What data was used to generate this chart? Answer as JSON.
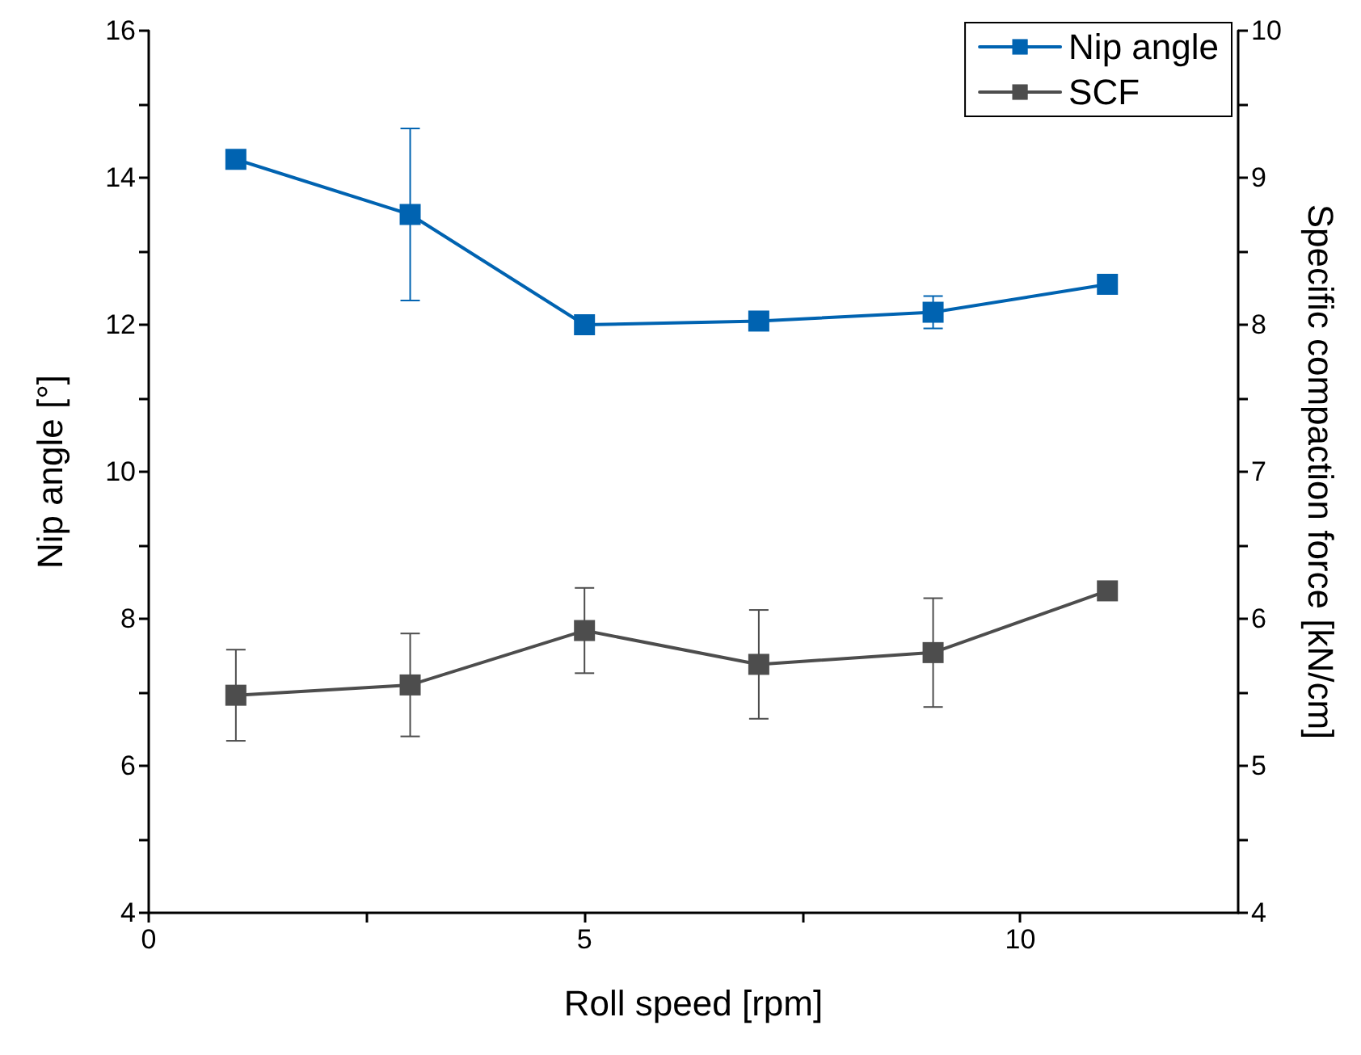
{
  "chart_data": {
    "type": "line",
    "xlabel": "Roll speed [rpm]",
    "ylabel": "Nip angle [°]",
    "y2label": "Specific compaction force [kN/cm]",
    "x": [
      1,
      3,
      5,
      7,
      9,
      11
    ],
    "series": [
      {
        "name": "Nip angle",
        "color": "#0063b1",
        "values": [
          14.25,
          13.5,
          12.0,
          12.05,
          12.17,
          12.55
        ],
        "errors": [
          null,
          1.17,
          0.05,
          null,
          0.22,
          null
        ]
      },
      {
        "name": "SCF",
        "color": "#4d4d4d",
        "axis": "y2",
        "values": [
          5.48,
          5.55,
          5.92,
          5.69,
          5.77,
          6.19
        ],
        "errors": [
          0.31,
          0.35,
          0.29,
          0.37,
          0.37,
          null
        ]
      }
    ],
    "xlim": [
      0,
      12.5
    ],
    "xticks": [
      0,
      {
        "value": 2.5,
        "label": null
      },
      5,
      {
        "value": 7.5,
        "label": null
      },
      10
    ],
    "ylim": [
      4,
      16
    ],
    "yticks": [
      4,
      {
        "value": 5,
        "label": null
      },
      6,
      {
        "value": 7,
        "label": null
      },
      8,
      {
        "value": 9,
        "label": null
      },
      10,
      {
        "value": 11,
        "label": null
      },
      12,
      {
        "value": 13,
        "label": null
      },
      14,
      {
        "value": 15,
        "label": null
      },
      16
    ],
    "y2lim": [
      4,
      10
    ],
    "y2ticks": [
      4,
      {
        "value": 4.5,
        "label": null
      },
      5,
      {
        "value": 5.5,
        "label": null
      },
      6,
      {
        "value": 6.5,
        "label": null
      },
      7,
      {
        "value": 7.5,
        "label": null
      },
      8,
      {
        "value": 8.5,
        "label": null
      },
      9,
      {
        "value": 9.5,
        "label": null
      },
      10
    ],
    "marker": "square",
    "line_style": "solid",
    "legend": "top right",
    "grid": false
  }
}
